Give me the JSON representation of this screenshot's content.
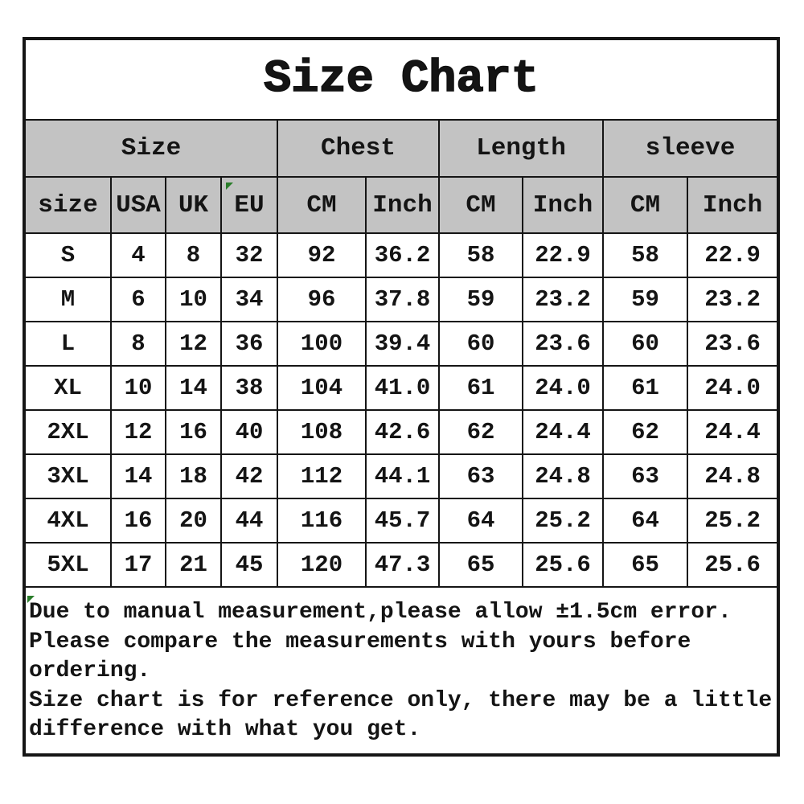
{
  "chart_data": {
    "type": "table",
    "title": "Size Chart",
    "group_headers": [
      {
        "label": "Size",
        "span": 4
      },
      {
        "label": "Chest",
        "span": 2
      },
      {
        "label": "Length",
        "span": 2
      },
      {
        "label": "sleeve",
        "span": 2
      }
    ],
    "columns": [
      "size",
      "USA",
      "UK",
      "EU",
      "CM",
      "Inch",
      "CM",
      "Inch",
      "CM",
      "Inch"
    ],
    "rows": [
      [
        "S",
        "4",
        "8",
        "32",
        "92",
        "36.2",
        "58",
        "22.9",
        "58",
        "22.9"
      ],
      [
        "M",
        "6",
        "10",
        "34",
        "96",
        "37.8",
        "59",
        "23.2",
        "59",
        "23.2"
      ],
      [
        "L",
        "8",
        "12",
        "36",
        "100",
        "39.4",
        "60",
        "23.6",
        "60",
        "23.6"
      ],
      [
        "XL",
        "10",
        "14",
        "38",
        "104",
        "41.0",
        "61",
        "24.0",
        "61",
        "24.0"
      ],
      [
        "2XL",
        "12",
        "16",
        "40",
        "108",
        "42.6",
        "62",
        "24.4",
        "62",
        "24.4"
      ],
      [
        "3XL",
        "14",
        "18",
        "42",
        "112",
        "44.1",
        "63",
        "24.8",
        "63",
        "24.8"
      ],
      [
        "4XL",
        "16",
        "20",
        "44",
        "116",
        "45.7",
        "64",
        "25.2",
        "64",
        "25.2"
      ],
      [
        "5XL",
        "17",
        "21",
        "45",
        "120",
        "47.3",
        "65",
        "25.6",
        "65",
        "25.6"
      ]
    ],
    "layout_hints": {
      "header_rows": 2,
      "grid": true,
      "merged_title_row": true
    }
  },
  "notes": {
    "lines": [
      "Due to manual measurement,please allow ±1.5cm error.",
      "Please compare the measurements with yours before",
      "ordering.",
      "Size chart is for reference only, there may be a little",
      "difference with what you get."
    ]
  },
  "icons": {
    "cell_flag": "green-corner-triangle"
  },
  "colors": {
    "header_bg": "#c3c3c3",
    "border": "#151515",
    "text": "#141414",
    "flag_green": "#2a7d2a",
    "background": "#ffffff"
  }
}
